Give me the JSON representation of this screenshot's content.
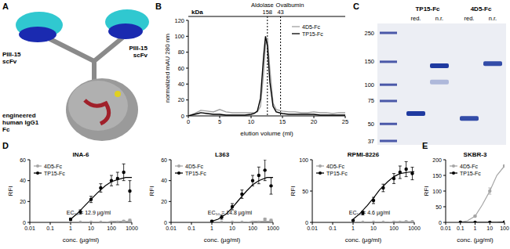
{
  "diagram": {
    "label": "A",
    "labels": [
      {
        "lines": [
          "PIII-15",
          "scFv"
        ]
      },
      {
        "lines": [
          "PIII-15",
          "scFv"
        ]
      },
      {
        "lines": [
          "engineered",
          "human IgG1",
          "Fc"
        ]
      }
    ]
  },
  "gel": {
    "label": "C",
    "ladder": [
      250,
      150,
      100,
      75,
      50,
      37
    ],
    "groups": [
      {
        "name": "TP15-Fc",
        "lanes": [
          {
            "name": "red.",
            "bands": [
              {
                "kda": 60,
                "intensity": 1
              }
            ]
          },
          {
            "name": "n.r.",
            "bands": [
              {
                "kda": 140,
                "intensity": 1
              },
              {
                "kda": 105,
                "intensity": 0.3
              }
            ]
          }
        ]
      },
      {
        "name": "4D5-Fc",
        "lanes": [
          {
            "name": "red.",
            "bands": [
              {
                "kda": 55,
                "intensity": 0.9
              }
            ]
          },
          {
            "name": "n.r.",
            "bands": [
              {
                "kda": 145,
                "intensity": 0.9
              }
            ]
          }
        ]
      }
    ]
  },
  "chart_data": [
    {
      "type": "line",
      "label": "B",
      "xlabel": "elution volume (ml)",
      "ylabel": "normalized mAU 280 nm",
      "x": [
        0,
        1,
        2,
        3,
        4,
        5,
        6,
        7,
        8,
        9,
        10,
        10.5,
        11,
        11.5,
        12,
        12.3,
        12.6,
        13,
        13.5,
        14,
        15,
        16,
        17,
        18,
        19,
        20,
        21,
        22,
        23,
        24,
        25
      ],
      "xlim": [
        0,
        25
      ],
      "xticks": [
        0,
        5,
        10,
        15,
        20,
        25
      ],
      "ylim": [
        0,
        120
      ],
      "yticks": [
        0,
        20,
        40,
        60,
        80,
        100,
        120
      ],
      "legend": "upper right",
      "top_axis": {
        "label": "kDa",
        "markers": [
          {
            "name": "Aldolase",
            "value": 158,
            "x": 12.6
          },
          {
            "name": "Ovalbumin",
            "value": 43,
            "x": 14.7
          }
        ]
      },
      "series": [
        {
          "name": "4D5-Fc",
          "color": "#a0a0a0",
          "values": [
            0,
            3,
            7,
            6,
            5,
            8,
            5,
            4,
            4,
            4,
            4,
            4,
            5,
            12,
            55,
            90,
            98,
            58,
            16,
            8,
            6,
            5,
            5,
            4,
            4,
            5,
            4,
            4,
            3,
            4,
            4
          ]
        },
        {
          "name": "TP15-Fc",
          "color": "#000000",
          "values": [
            0,
            2,
            4,
            3,
            2,
            2,
            1,
            1,
            1,
            1,
            2,
            3,
            6,
            22,
            75,
            100,
            88,
            42,
            12,
            5,
            3,
            2,
            2,
            2,
            2,
            2,
            1,
            1,
            1,
            1,
            1
          ]
        }
      ]
    },
    {
      "type": "scatter",
      "label": "D",
      "title": "INA-6",
      "xlabel": "conc. (µg/ml)",
      "ylabel": "RFI",
      "log": "x",
      "xlim": [
        0.01,
        1000
      ],
      "xticks": [
        0.01,
        0.1,
        1,
        10,
        100,
        1000
      ],
      "ylim": [
        0,
        60
      ],
      "yticks": [
        0,
        20,
        40,
        60
      ],
      "legend": "upper left",
      "annotation": "EC₅₀ = 12.9 µg/ml",
      "series": [
        {
          "name": "4D5-Fc",
          "color": "#a6a6a6",
          "marker": "circle",
          "x": [
            1,
            3,
            10,
            30,
            100,
            200,
            400,
            800
          ],
          "values": [
            0,
            0,
            0,
            0,
            0,
            0,
            1,
            2
          ],
          "errors": [
            0,
            0,
            0,
            0,
            0,
            0,
            1,
            1
          ],
          "fit_x": [
            1,
            2,
            5,
            10,
            20,
            50,
            100,
            200,
            500,
            1000
          ],
          "fit_values": [
            0,
            0,
            0,
            0,
            0,
            0,
            1,
            1,
            1,
            1
          ]
        },
        {
          "name": "TP15-Fc",
          "color": "#000000",
          "marker": "circle",
          "x": [
            1,
            3,
            10,
            30,
            100,
            200,
            400,
            800
          ],
          "values": [
            3,
            10,
            22,
            33,
            40,
            42,
            48,
            30
          ],
          "errors": [
            1,
            2,
            3,
            4,
            5,
            6,
            8,
            10
          ],
          "fit_x": [
            1,
            2,
            5,
            10,
            20,
            50,
            100,
            200,
            500,
            1000
          ],
          "fit_values": [
            3,
            8,
            16,
            22,
            28,
            35,
            39,
            41,
            43,
            43
          ]
        }
      ]
    },
    {
      "type": "scatter",
      "title": "L363",
      "xlabel": "conc. (µg/ml)",
      "ylabel": "RFI",
      "log": "x",
      "xlim": [
        0.01,
        1000
      ],
      "xticks": [
        0.01,
        0.1,
        1,
        10,
        100,
        1000
      ],
      "ylim": [
        0,
        60
      ],
      "yticks": [
        0,
        20,
        40,
        60
      ],
      "legend": "upper left",
      "annotation": "EC₅₀ = 14.8 µg/ml",
      "series": [
        {
          "name": "4D5-Fc",
          "color": "#a6a6a6",
          "marker": "circle",
          "x": [
            1,
            3,
            10,
            30,
            100,
            200,
            400,
            800
          ],
          "values": [
            0,
            0,
            0,
            0,
            0,
            0,
            3,
            2
          ],
          "errors": [
            0,
            0,
            0,
            0,
            0,
            0,
            1,
            1
          ],
          "fit_x": [
            1,
            2,
            5,
            10,
            20,
            50,
            100,
            200,
            500,
            1000
          ],
          "fit_values": [
            0,
            0,
            0,
            0,
            0,
            0,
            1,
            1,
            1,
            1
          ]
        },
        {
          "name": "TP15-Fc",
          "color": "#000000",
          "marker": "circle",
          "x": [
            1,
            3,
            10,
            30,
            100,
            200,
            400,
            800
          ],
          "values": [
            1,
            5,
            15,
            27,
            40,
            45,
            50,
            35
          ],
          "errors": [
            1,
            2,
            3,
            4,
            5,
            8,
            10,
            8
          ],
          "fit_x": [
            1,
            2,
            5,
            10,
            20,
            50,
            100,
            200,
            500,
            1000
          ],
          "fit_values": [
            1,
            3,
            8,
            14,
            21,
            30,
            36,
            40,
            43,
            43
          ]
        }
      ]
    },
    {
      "type": "scatter",
      "title": "RPMI-8226",
      "xlabel": "conc. (µg/ml)",
      "ylabel": "RFI",
      "log": "x",
      "xlim": [
        0.01,
        1000
      ],
      "xticks": [
        0.01,
        0.1,
        1,
        10,
        100,
        1000
      ],
      "ylim": [
        0,
        100
      ],
      "yticks": [
        0,
        50,
        100
      ],
      "legend": "upper left",
      "annotation": "EC₅₀ = 4.6 µg/ml",
      "series": [
        {
          "name": "4D5-Fc",
          "color": "#a6a6a6",
          "marker": "circle",
          "x": [
            1,
            3,
            10,
            30,
            100,
            200,
            400,
            800
          ],
          "values": [
            0,
            0,
            0,
            0,
            0,
            0,
            1,
            1
          ],
          "errors": [
            0,
            0,
            0,
            0,
            0,
            0,
            1,
            1
          ],
          "fit_x": [
            1,
            2,
            5,
            10,
            20,
            50,
            100,
            200,
            500,
            1000
          ],
          "fit_values": [
            0,
            0,
            0,
            0,
            0,
            0,
            1,
            1,
            1,
            1
          ]
        },
        {
          "name": "TP15-Fc",
          "color": "#000000",
          "marker": "circle",
          "x": [
            1,
            3,
            10,
            30,
            100,
            200,
            400,
            800
          ],
          "values": [
            3,
            15,
            35,
            55,
            70,
            80,
            85,
            78
          ],
          "errors": [
            1,
            3,
            5,
            6,
            8,
            10,
            12,
            10
          ],
          "fit_x": [
            1,
            2,
            5,
            10,
            20,
            50,
            100,
            200,
            500,
            1000
          ],
          "fit_values": [
            5,
            13,
            27,
            39,
            52,
            65,
            73,
            78,
            80,
            81
          ]
        }
      ]
    },
    {
      "type": "scatter",
      "label": "E",
      "title": "SKBR-3",
      "xlabel": "conc. (µg/ml)",
      "ylabel": "RFI",
      "log": "x",
      "xlim": [
        0.01,
        100
      ],
      "xticks": [
        0.01,
        0.1,
        1,
        10,
        100
      ],
      "ylim": [
        0,
        200
      ],
      "yticks": [
        0,
        50,
        100,
        150,
        200
      ],
      "legend": "upper left",
      "series": [
        {
          "name": "4D5-Fc",
          "color": "#a6a6a6",
          "marker": "circle",
          "x": [
            0.1,
            1,
            10,
            100
          ],
          "values": [
            1,
            20,
            100,
            180
          ],
          "errors": [
            0,
            2,
            10,
            3
          ],
          "fit_x": [
            0.1,
            0.3,
            1,
            3,
            10,
            30,
            100
          ],
          "fit_values": [
            1,
            5,
            20,
            55,
            100,
            150,
            180
          ]
        },
        {
          "name": "TP15-Fc",
          "color": "#000000",
          "marker": "circle",
          "x": [
            0.1,
            1,
            10,
            100
          ],
          "values": [
            0,
            0,
            0,
            1
          ],
          "errors": [
            0,
            0,
            0,
            0
          ],
          "fit_x": [
            0.1,
            0.3,
            1,
            3,
            10,
            30,
            100
          ],
          "fit_values": [
            0,
            0,
            0,
            0,
            0,
            0,
            1
          ]
        }
      ]
    }
  ]
}
